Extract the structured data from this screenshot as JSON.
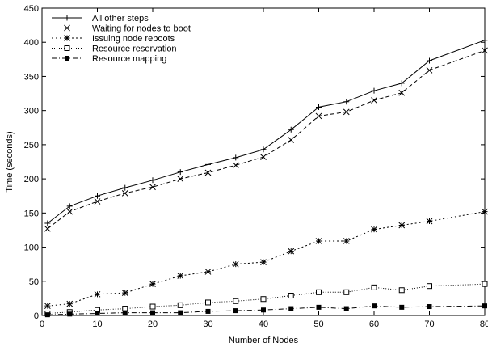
{
  "chart_data": {
    "type": "line",
    "title": "",
    "xlabel": "Number of Nodes",
    "ylabel": "Time (seconds)",
    "xlim": [
      0,
      80
    ],
    "ylim": [
      0,
      450
    ],
    "xticks": [
      0,
      10,
      20,
      30,
      40,
      50,
      60,
      70,
      80
    ],
    "yticks": [
      0,
      50,
      100,
      150,
      200,
      250,
      300,
      350,
      400,
      450
    ],
    "grid": false,
    "legend_position": "top-left",
    "x": [
      1,
      5,
      10,
      15,
      20,
      25,
      30,
      35,
      40,
      45,
      50,
      55,
      60,
      65,
      70,
      80
    ],
    "series": [
      {
        "name": "All other steps",
        "marker": "plus",
        "dash": "solid",
        "values": [
          135,
          160,
          175,
          187,
          198,
          210,
          221,
          231,
          243,
          272,
          305,
          313,
          329,
          340,
          373,
          403
        ]
      },
      {
        "name": "Waiting for nodes to boot",
        "marker": "cross",
        "dash": "dashed",
        "values": [
          127,
          152,
          167,
          179,
          188,
          200,
          209,
          220,
          232,
          257,
          292,
          298,
          315,
          326,
          359,
          388
        ]
      },
      {
        "name": "Issuing node reboots",
        "marker": "star",
        "dash": "dotted",
        "values": [
          14,
          17,
          31,
          33,
          46,
          58,
          64,
          75,
          78,
          94,
          109,
          109,
          126,
          132,
          138,
          152
        ]
      },
      {
        "name": "Resource reservation",
        "marker": "open-square",
        "dash": "fine-dotted",
        "values": [
          3,
          5,
          8,
          10,
          13,
          15,
          19,
          21,
          24,
          29,
          34,
          34,
          41,
          37,
          43,
          46
        ]
      },
      {
        "name": "Resource mapping",
        "marker": "filled-square",
        "dash": "dash-dot",
        "values": [
          1,
          2,
          3,
          4,
          4,
          4,
          6,
          7,
          8,
          10,
          12,
          10,
          14,
          12,
          13,
          14
        ]
      }
    ]
  }
}
